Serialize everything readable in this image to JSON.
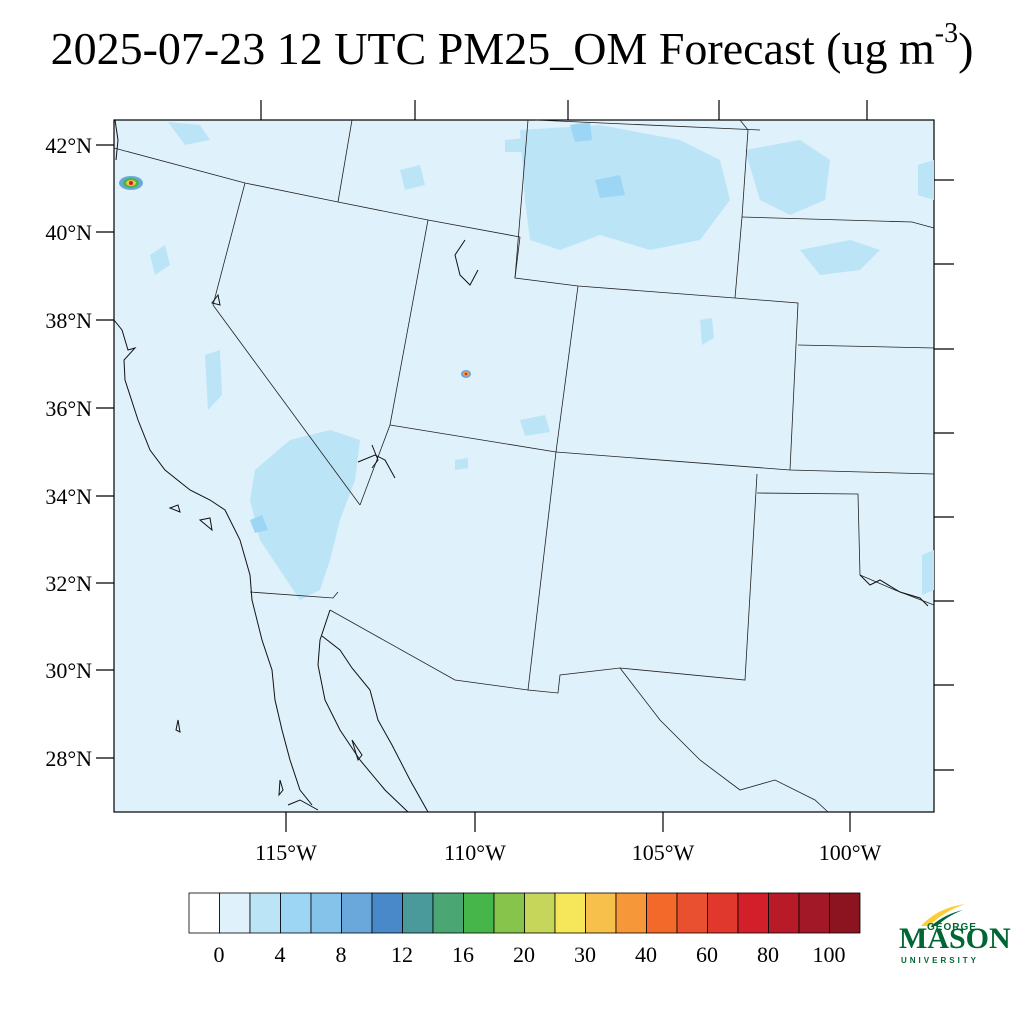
{
  "title": {
    "main": "2025-07-23 12 UTC PM25_OM Forecast (ug m",
    "sup": "-3",
    "close": ")"
  },
  "map": {
    "background_color": "#dff1fb",
    "lat_labels": [
      "42°N",
      "40°N",
      "38°N",
      "36°N",
      "34°N",
      "32°N",
      "30°N",
      "28°N"
    ],
    "lon_labels": [
      "115°W",
      "110°W",
      "105°W",
      "100°W"
    ]
  },
  "colorbar": {
    "labels": [
      "0",
      "4",
      "8",
      "12",
      "16",
      "20",
      "30",
      "40",
      "60",
      "80",
      "100"
    ],
    "colors": [
      "#ffffff",
      "#dff1fb",
      "#bce4f7",
      "#9dd6f4",
      "#86c3ea",
      "#6aa8dc",
      "#4a89c9",
      "#4a9a9c",
      "#4aa672",
      "#46b64a",
      "#86c44c",
      "#c6d65a",
      "#f6e65a",
      "#f6c04a",
      "#f6983a",
      "#f2692a",
      "#e85030",
      "#e0382c",
      "#d21f2a",
      "#b81a28",
      "#a21826",
      "#8c1420"
    ]
  },
  "logo": {
    "line1": "GEORGE",
    "line2": "MASON",
    "line3": "UNIVERSITY",
    "brand_color": "#006633",
    "accent_color": "#ffcc33"
  }
}
